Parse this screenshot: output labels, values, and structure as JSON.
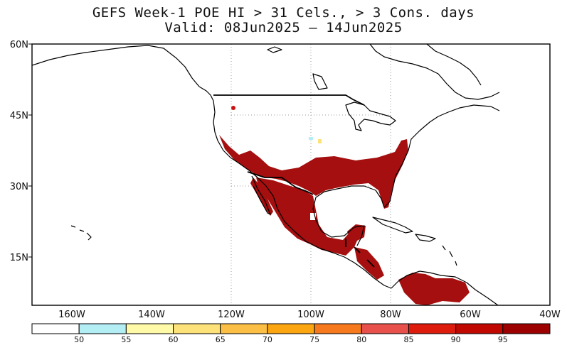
{
  "title": "GEFS Week-1 POE HI > 31 Cels., > 3 Cons. days",
  "subtitle": "Valid: 08Jun2025 – 14Jun2025",
  "lat_labels": [
    "60N",
    "45N",
    "30N",
    "15N"
  ],
  "lon_labels": [
    "160W",
    "140W",
    "120W",
    "100W",
    "80W",
    "60W",
    "40W"
  ],
  "colorbar": {
    "tick_labels": [
      "50",
      "55",
      "60",
      "65",
      "70",
      "75",
      "80",
      "85",
      "90",
      "95"
    ],
    "colors": [
      "#ffffff",
      "#b3eef5",
      "#fffaa8",
      "#fde27a",
      "#fbbf45",
      "#fba511",
      "#f6791e",
      "#e8514b",
      "#dd1c0d",
      "#c00800",
      "#9d0000"
    ]
  },
  "map": {
    "extent": {
      "lon": [
        -170,
        -40
      ],
      "lat": [
        5,
        60
      ]
    },
    "gridlines": "dotted",
    "shaded_category_color": "#a50f0f"
  }
}
